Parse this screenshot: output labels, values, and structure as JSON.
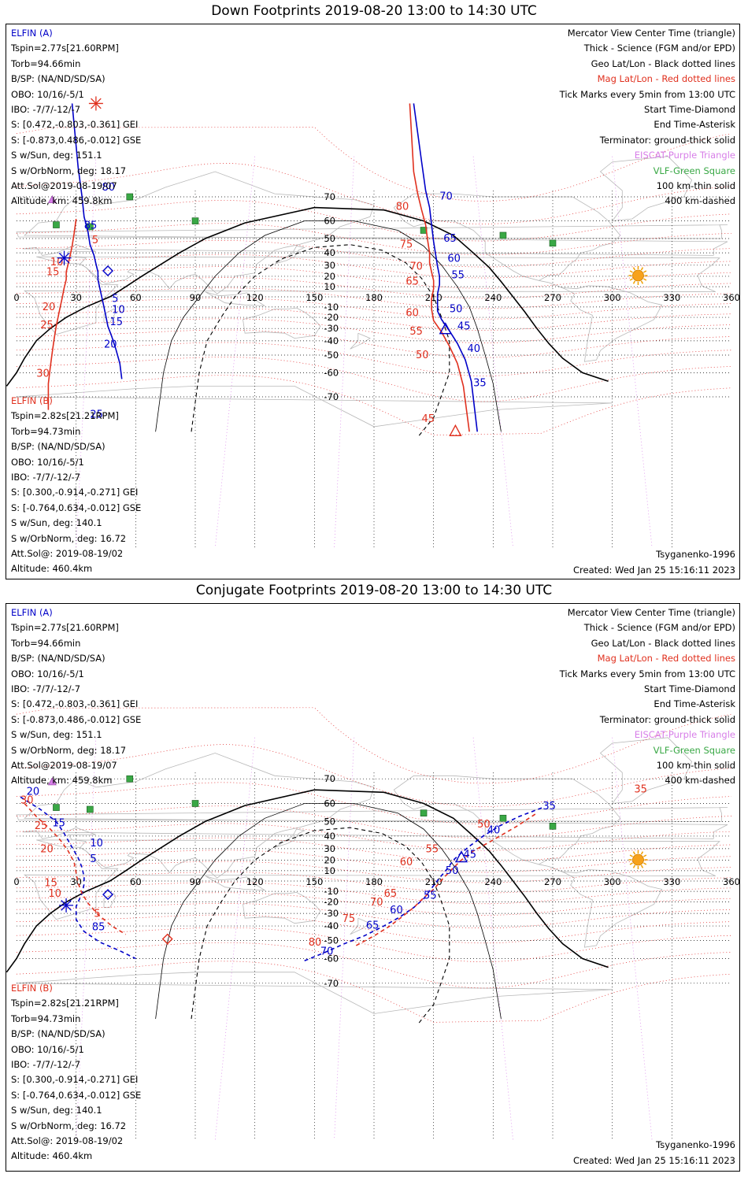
{
  "lon_ticks": [
    "0",
    "30",
    "60",
    "90",
    "120",
    "150",
    "180",
    "210",
    "240",
    "270",
    "300",
    "330",
    "360"
  ],
  "lat_ticks": [
    "70",
    "60",
    "50",
    "40",
    "30",
    "20",
    "10",
    "-10",
    "-20",
    "-30",
    "-40",
    "-50",
    "-60",
    "-70"
  ],
  "legend": {
    "lines": [
      "Mercator View Center Time (triangle)",
      "Thick - Science (FGM and/or EPD)",
      "Geo Lat/Lon - Black dotted lines",
      "Mag Lat/Lon - Red dotted lines",
      "Tick Marks every 5min from 13:00 UTC",
      "Start Time-Diamond",
      "End Time-Asterisk",
      "Terminator: ground-thick solid",
      "EISCAT-Purple Triangle",
      "VLF-Green Square",
      "100 km-thin solid",
      "400 km-dashed"
    ],
    "colors": [
      "#000000",
      "#000000",
      "#000000",
      "#e0301e",
      "#000000",
      "#000000",
      "#000000",
      "#000000",
      "#d77ee8",
      "#39a845",
      "#000000",
      "#000000"
    ],
    "model": "Tsyganenko-1996",
    "created": "Created: Wed Jan 25 15:16:11 2023"
  },
  "elfin_a": {
    "name": "ELFIN (A)",
    "lines": [
      "Tspin=2.77s[21.60RPM]",
      "Torb=94.66min",
      "B/SP: (NA/ND/SD/SA)",
      "OBO: 10/16/-5/1",
      "IBO: -7/7/-12/-7",
      "S: [0.472,-0.803,-0.361] GEI",
      "S: [-0.873,0.486,-0.012] GSE",
      "S w/Sun, deg: 151.1",
      "S w/OrbNorm, deg: 18.17",
      "Att.Sol@2019-08-19/07",
      "Altitude, km: 459.8km"
    ]
  },
  "elfin_b": {
    "name": "ELFIN (B)",
    "lines": [
      "Tspin=2.82s[21.21RPM]",
      "Torb=94.73min",
      "B/SP: (NA/ND/SD/SA)",
      "OBO: 10/16/-5/1",
      "IBO: -7/7/-12/-7",
      "S: [0.300,-0.914,-0.271] GEI",
      "S: [-0.764,0.634,-0.012] GSE",
      "S w/Sun, deg: 140.1",
      "S w/OrbNorm, deg: 16.72",
      "Att.Sol@: 2019-08-19/02",
      "Altitude: 460.4km"
    ]
  },
  "panels": [
    {
      "title": "Down Footprints 2019-08-20 13:00 to 14:30 UTC",
      "tracks": [
        {
          "sat": "A",
          "color": "#0000c8",
          "style": "solid",
          "pts": [
            [
              28,
              86
            ],
            [
              31,
              78
            ],
            [
              33,
              70
            ],
            [
              34,
              62
            ],
            [
              36,
              54
            ],
            [
              37,
              46
            ],
            [
              39,
              38
            ],
            [
              40,
              31
            ],
            [
              41,
              24
            ],
            [
              41,
              17
            ],
            [
              42,
              8
            ],
            [
              43,
              -1
            ],
            [
              44,
              -10
            ],
            [
              45,
              -19
            ],
            [
              46,
              -28
            ],
            [
              48,
              -37
            ],
            [
              50,
              -46
            ],
            [
              52,
              -55
            ],
            [
              53,
              -63
            ]
          ]
        },
        {
          "sat": "A",
          "color": "#0000c8",
          "style": "solid",
          "pts": [
            [
              200,
              86
            ],
            [
              204,
              79
            ],
            [
              206,
              72
            ],
            [
              208,
              66
            ],
            [
              209,
              58
            ],
            [
              210,
              48
            ],
            [
              211,
              39
            ],
            [
              212,
              29
            ],
            [
              213,
              20
            ],
            [
              213,
              12
            ],
            [
              212,
              3
            ],
            [
              212,
              -6
            ],
            [
              212,
              -14
            ],
            [
              214,
              -22
            ],
            [
              218,
              -32
            ],
            [
              222,
              -42
            ],
            [
              226,
              -53
            ],
            [
              229,
              -64
            ],
            [
              232,
              -79
            ]
          ]
        },
        {
          "sat": "B",
          "color": "#e0301e",
          "style": "solid",
          "pts": [
            [
              30,
              61
            ],
            [
              29,
              53
            ],
            [
              28,
              45
            ],
            [
              27,
              38
            ],
            [
              26,
              31
            ],
            [
              25,
              24
            ],
            [
              25,
              17
            ],
            [
              24,
              9
            ],
            [
              23,
              -1
            ],
            [
              22,
              -10
            ],
            [
              21,
              -19
            ],
            [
              20,
              -28
            ],
            [
              19,
              -38
            ],
            [
              18,
              -48
            ],
            [
              17,
              -57
            ],
            [
              16,
              -65
            ],
            [
              16,
              -74
            ]
          ]
        },
        {
          "sat": "B",
          "color": "#e0301e",
          "style": "solid",
          "pts": [
            [
              198,
              86
            ],
            [
              200,
              77
            ],
            [
              202,
              71
            ],
            [
              204,
              65
            ],
            [
              206,
              58
            ],
            [
              207,
              49
            ],
            [
              208,
              40
            ],
            [
              208,
              32
            ],
            [
              209,
              24
            ],
            [
              210,
              16
            ],
            [
              210,
              8
            ],
            [
              209,
              -2
            ],
            [
              209,
              -12
            ],
            [
              210,
              -23
            ],
            [
              214,
              -33
            ],
            [
              218,
              -44
            ],
            [
              222,
              -55
            ],
            [
              225,
              -66
            ],
            [
              228,
              -79
            ]
          ]
        }
      ],
      "labels": [
        {
          "t": "80",
          "lon": 43,
          "lat": 72,
          "c": "#0000c8"
        },
        {
          "t": "85",
          "lon": 34,
          "lat": 56,
          "c": "#0000c8"
        },
        {
          "t": "5",
          "lon": 48,
          "lat": -5,
          "c": "#0000c8"
        },
        {
          "t": "10",
          "lon": 48,
          "lat": -16,
          "c": "#0000c8"
        },
        {
          "t": "15",
          "lon": 47,
          "lat": -27,
          "c": "#0000c8"
        },
        {
          "t": "20",
          "lon": 44,
          "lat": -45,
          "c": "#0000c8"
        },
        {
          "t": "25",
          "lon": 37,
          "lat": -76,
          "c": "#0000c8"
        },
        {
          "t": "70",
          "lon": 213,
          "lat": 69,
          "c": "#0000c8"
        },
        {
          "t": "65",
          "lon": 215,
          "lat": 48,
          "c": "#0000c8"
        },
        {
          "t": "60",
          "lon": 217,
          "lat": 33,
          "c": "#0000c8"
        },
        {
          "t": "55",
          "lon": 219,
          "lat": 18,
          "c": "#0000c8"
        },
        {
          "t": "50",
          "lon": 218,
          "lat": -15,
          "c": "#0000c8"
        },
        {
          "t": "45",
          "lon": 222,
          "lat": -31,
          "c": "#0000c8"
        },
        {
          "t": "40",
          "lon": 227,
          "lat": -48,
          "c": "#0000c8"
        },
        {
          "t": "35",
          "lon": 230,
          "lat": -66,
          "c": "#0000c8"
        },
        {
          "t": "5",
          "lon": 38,
          "lat": 47,
          "c": "#e0301e"
        },
        {
          "t": "10",
          "lon": 17,
          "lat": 30,
          "c": "#e0301e"
        },
        {
          "t": "15",
          "lon": 15,
          "lat": 21,
          "c": "#e0301e"
        },
        {
          "t": "20",
          "lon": 13,
          "lat": -13,
          "c": "#e0301e"
        },
        {
          "t": "25",
          "lon": 12,
          "lat": -30,
          "c": "#e0301e"
        },
        {
          "t": "30",
          "lon": 10,
          "lat": -62,
          "c": "#e0301e"
        },
        {
          "t": "80",
          "lon": 191,
          "lat": 65,
          "c": "#e0301e"
        },
        {
          "t": "75",
          "lon": 193,
          "lat": 44,
          "c": "#e0301e"
        },
        {
          "t": "70",
          "lon": 198,
          "lat": 26,
          "c": "#e0301e"
        },
        {
          "t": "65",
          "lon": 196,
          "lat": 12,
          "c": "#e0301e"
        },
        {
          "t": "60",
          "lon": 196,
          "lat": -19,
          "c": "#e0301e"
        },
        {
          "t": "55",
          "lon": 198,
          "lat": -35,
          "c": "#e0301e"
        },
        {
          "t": "50",
          "lon": 201,
          "lat": -52,
          "c": "#e0301e"
        },
        {
          "t": "45",
          "lon": 204,
          "lat": -77,
          "c": "#e0301e"
        }
      ],
      "markers": [
        {
          "type": "asterisk",
          "lon": 24,
          "lat": 36,
          "c": "#0000c8"
        },
        {
          "type": "diamond",
          "lon": 46,
          "lat": 25,
          "c": "#0000c8"
        },
        {
          "type": "asterisk",
          "lon": 40,
          "lat": 86,
          "c": "#e0301e"
        },
        {
          "type": "triangle",
          "lon": 216,
          "lat": -31,
          "c": "#0000c8"
        },
        {
          "type": "triangle",
          "lon": 221,
          "lat": -79,
          "c": "#e0301e"
        }
      ]
    },
    {
      "title": "Conjugate Footprints 2019-08-20 13:00 to 14:30 UTC",
      "tracks": [
        {
          "sat": "A",
          "color": "#0000c8",
          "style": "dashed",
          "pts": [
            [
              2,
              63
            ],
            [
              12,
              57
            ],
            [
              20,
              50
            ],
            [
              24,
              42
            ],
            [
              28,
              31
            ],
            [
              31,
              22
            ],
            [
              33,
              13
            ],
            [
              34,
              4
            ],
            [
              34,
              -3
            ],
            [
              33,
              -12
            ],
            [
              30,
              -24
            ],
            [
              30,
              -35
            ],
            [
              34,
              -44
            ],
            [
              42,
              -51
            ],
            [
              52,
              -56
            ],
            [
              60,
              -60
            ]
          ]
        },
        {
          "sat": "A",
          "color": "#0000c8",
          "style": "dashed",
          "pts": [
            [
              145,
              -61
            ],
            [
              155,
              -57
            ],
            [
              165,
              -52
            ],
            [
              175,
              -47
            ],
            [
              185,
              -40
            ],
            [
              193,
              -33
            ],
            [
              200,
              -25
            ],
            [
              205,
              -17
            ],
            [
              209,
              -7
            ],
            [
              213,
              3
            ],
            [
              217,
              12
            ],
            [
              220,
              20
            ],
            [
              223,
              25
            ],
            [
              228,
              32
            ],
            [
              235,
              40
            ],
            [
              243,
              47
            ],
            [
              253,
              53
            ],
            [
              265,
              58
            ]
          ]
        },
        {
          "sat": "B",
          "color": "#e0301e",
          "style": "dashed",
          "pts": [
            [
              4,
              60
            ],
            [
              10,
              53
            ],
            [
              17,
              45
            ],
            [
              22,
              37
            ],
            [
              26,
              28
            ],
            [
              29,
              18
            ],
            [
              30,
              8
            ],
            [
              31,
              -2
            ],
            [
              33,
              -12
            ],
            [
              36,
              -21
            ],
            [
              41,
              -31
            ],
            [
              48,
              -40
            ],
            [
              55,
              -46
            ]
          ]
        },
        {
          "sat": "B",
          "color": "#e0301e",
          "style": "dashed",
          "pts": [
            [
              171,
              -53
            ],
            [
              180,
              -47
            ],
            [
              188,
              -40
            ],
            [
              194,
              -33
            ],
            [
              200,
              -25
            ],
            [
              205,
              -16
            ],
            [
              210,
              -8
            ],
            [
              215,
              3
            ],
            [
              219,
              11
            ],
            [
              224,
              20
            ],
            [
              230,
              28
            ],
            [
              240,
              37
            ],
            [
              252,
              47
            ],
            [
              262,
              55
            ]
          ]
        }
      ],
      "labels": [
        {
          "t": "20",
          "lon": 5,
          "lat": 64,
          "c": "#0000c8"
        },
        {
          "t": "15",
          "lon": 18,
          "lat": 47,
          "c": "#0000c8"
        },
        {
          "t": "10",
          "lon": 37,
          "lat": 32,
          "c": "#0000c8"
        },
        {
          "t": "5",
          "lon": 37,
          "lat": 18,
          "c": "#0000c8"
        },
        {
          "t": "85",
          "lon": 38,
          "lat": -43,
          "c": "#0000c8"
        },
        {
          "t": "70",
          "lon": 153,
          "lat": -58,
          "c": "#0000c8"
        },
        {
          "t": "65",
          "lon": 176,
          "lat": -42,
          "c": "#0000c8"
        },
        {
          "t": "60",
          "lon": 188,
          "lat": -30,
          "c": "#0000c8"
        },
        {
          "t": "55",
          "lon": 205,
          "lat": -17,
          "c": "#0000c8"
        },
        {
          "t": "50",
          "lon": 216,
          "lat": 7,
          "c": "#0000c8"
        },
        {
          "t": "45",
          "lon": 225,
          "lat": 22,
          "c": "#0000c8"
        },
        {
          "t": "40",
          "lon": 237,
          "lat": 42,
          "c": "#0000c8"
        },
        {
          "t": "35",
          "lon": 265,
          "lat": 57,
          "c": "#0000c8"
        },
        {
          "t": "30",
          "lon": 2,
          "lat": 60,
          "c": "#e0301e"
        },
        {
          "t": "25",
          "lon": 9,
          "lat": 45,
          "c": "#e0301e"
        },
        {
          "t": "20",
          "lon": 12,
          "lat": 27,
          "c": "#e0301e"
        },
        {
          "t": "15",
          "lon": 14,
          "lat": -5,
          "c": "#e0301e"
        },
        {
          "t": "10",
          "lon": 16,
          "lat": -15,
          "c": "#e0301e"
        },
        {
          "t": "5",
          "lon": 39,
          "lat": -33,
          "c": "#e0301e"
        },
        {
          "t": "80",
          "lon": 147,
          "lat": -53,
          "c": "#e0301e"
        },
        {
          "t": "75",
          "lon": 164,
          "lat": -37,
          "c": "#e0301e"
        },
        {
          "t": "70",
          "lon": 178,
          "lat": -23,
          "c": "#e0301e"
        },
        {
          "t": "65",
          "lon": 185,
          "lat": -15,
          "c": "#e0301e"
        },
        {
          "t": "60",
          "lon": 193,
          "lat": 15,
          "c": "#e0301e"
        },
        {
          "t": "55",
          "lon": 206,
          "lat": 27,
          "c": "#e0301e"
        },
        {
          "t": "50",
          "lon": 232,
          "lat": 46,
          "c": "#e0301e"
        },
        {
          "t": "35",
          "lon": 311,
          "lat": 65,
          "c": "#e0301e"
        }
      ],
      "markers": [
        {
          "type": "asterisk",
          "lon": 25,
          "lat": -23,
          "c": "#0000c8"
        },
        {
          "type": "diamond",
          "lon": 46,
          "lat": -13,
          "c": "#0000c8"
        },
        {
          "type": "diamond",
          "lon": 76,
          "lat": -49,
          "c": "#e0301e"
        },
        {
          "type": "triangle",
          "lon": 224,
          "lat": 22,
          "c": "#0000c8"
        }
      ]
    }
  ]
}
